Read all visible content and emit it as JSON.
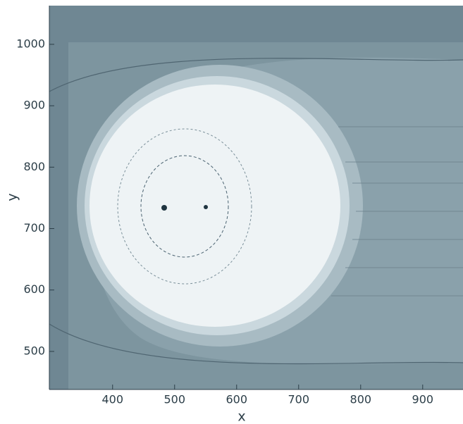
{
  "chart_data": {
    "type": "contour",
    "x_label": "x",
    "y_label": "y",
    "xlim": [
      298,
      965
    ],
    "ylim": [
      438,
      1063
    ],
    "xticks": [
      400,
      500,
      600,
      700,
      800,
      900
    ],
    "yticks": [
      500,
      600,
      700,
      800,
      900,
      1000
    ],
    "grid": false
  }
}
